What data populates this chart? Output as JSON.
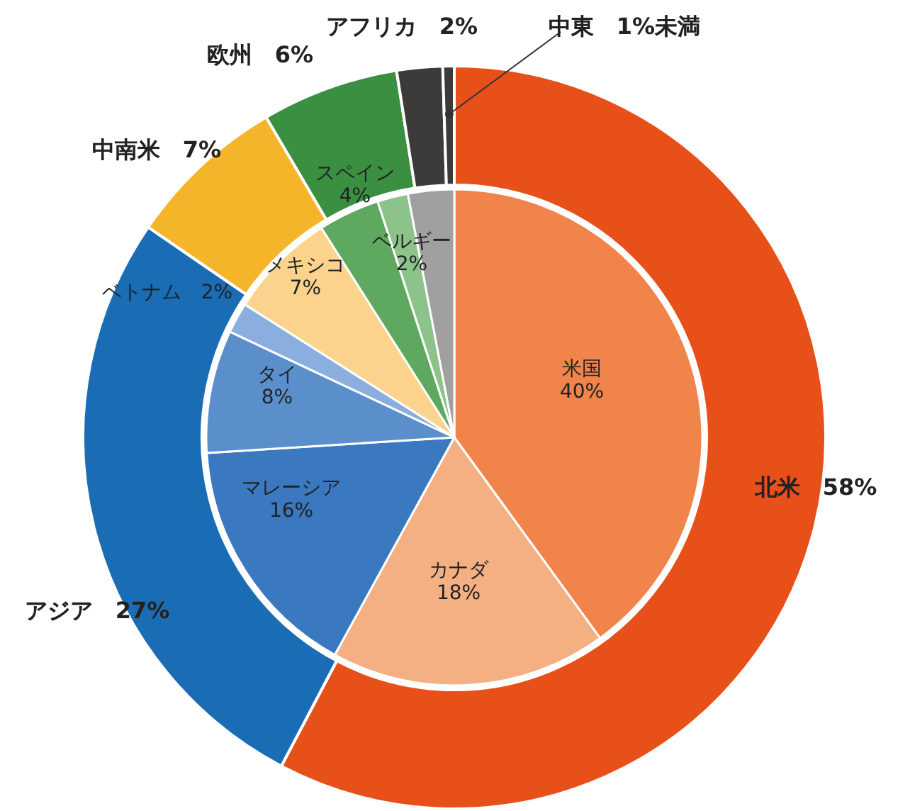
{
  "chart_data": {
    "type": "donut",
    "categories": [
      "北米",
      "アジア",
      "中南米",
      "欧州",
      "アフリカ",
      "中東",
      "米国",
      "カナダ",
      "マレーシア",
      "タイ",
      "ベトナム",
      "メキシコ",
      "スペイン",
      "ベルギー",
      null
    ],
    "series": [
      {
        "type": "pie",
        "values": [
          null,
          null,
          null,
          null,
          null,
          null,
          40,
          18,
          16,
          8,
          2,
          7,
          4,
          2,
          3
        ],
        "colors": [
          null,
          null,
          null,
          null,
          null,
          null,
          "#f0844a",
          "#f4b083",
          "#3a78c0",
          "#5b8fcc",
          "#8aaedd",
          "#fbd38c",
          "#5fa860",
          "#8cc38a",
          "#a0a0a0"
        ],
        "value_labels": [
          null,
          null,
          null,
          null,
          null,
          null,
          "40%",
          "18%",
          "16%",
          "8%",
          "2%",
          "7%",
          "4%",
          "2%",
          null
        ]
      },
      {
        "values": [
          58,
          27,
          7,
          6,
          2,
          0.5,
          null,
          null,
          null,
          null,
          null,
          null,
          null,
          null,
          null
        ],
        "colors": [
          "#e8501a",
          "#1a6db5",
          "#f5b52b",
          "#3a8f40",
          "#3d3a3a",
          "#3d3a3a",
          null,
          null,
          null,
          null,
          null,
          null,
          null,
          null,
          null
        ],
        "value_labels": [
          "58%",
          "27%",
          "7%",
          "6%",
          "2%",
          "1%未満",
          null,
          null,
          null,
          null,
          null,
          null,
          null,
          null,
          null
        ]
      }
    ]
  }
}
